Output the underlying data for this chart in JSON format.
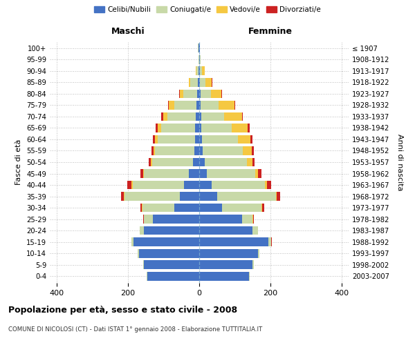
{
  "age_groups": [
    "0-4",
    "5-9",
    "10-14",
    "15-19",
    "20-24",
    "25-29",
    "30-34",
    "35-39",
    "40-44",
    "45-49",
    "50-54",
    "55-59",
    "60-64",
    "65-69",
    "70-74",
    "75-79",
    "80-84",
    "85-89",
    "90-94",
    "95-99",
    "100+"
  ],
  "birth_years": [
    "2003-2007",
    "1998-2002",
    "1993-1997",
    "1988-1992",
    "1983-1987",
    "1978-1982",
    "1973-1977",
    "1968-1972",
    "1963-1967",
    "1958-1962",
    "1953-1957",
    "1948-1952",
    "1943-1947",
    "1938-1942",
    "1933-1937",
    "1928-1932",
    "1923-1927",
    "1918-1922",
    "1913-1917",
    "1908-1912",
    "≤ 1907"
  ],
  "male": {
    "celibi": [
      145,
      155,
      170,
      185,
      155,
      130,
      70,
      55,
      42,
      30,
      18,
      14,
      12,
      12,
      10,
      8,
      5,
      3,
      2,
      0,
      2
    ],
    "coniugati": [
      2,
      3,
      4,
      5,
      12,
      25,
      90,
      155,
      145,
      125,
      115,
      110,
      105,
      95,
      80,
      62,
      40,
      22,
      5,
      2,
      1
    ],
    "vedovi": [
      0,
      0,
      0,
      0,
      0,
      0,
      1,
      2,
      3,
      2,
      3,
      5,
      8,
      10,
      12,
      15,
      10,
      5,
      2,
      0,
      0
    ],
    "divorziati": [
      0,
      0,
      0,
      0,
      1,
      3,
      5,
      8,
      12,
      8,
      5,
      6,
      6,
      5,
      5,
      2,
      1,
      0,
      0,
      0,
      0
    ]
  },
  "female": {
    "nubili": [
      140,
      150,
      165,
      195,
      150,
      120,
      65,
      50,
      35,
      22,
      15,
      10,
      8,
      6,
      5,
      4,
      3,
      2,
      2,
      1,
      1
    ],
    "coniugate": [
      2,
      3,
      5,
      8,
      15,
      30,
      110,
      165,
      150,
      135,
      120,
      112,
      100,
      85,
      65,
      50,
      30,
      15,
      5,
      2,
      1
    ],
    "vedove": [
      0,
      0,
      0,
      0,
      0,
      1,
      2,
      3,
      5,
      8,
      15,
      25,
      35,
      45,
      50,
      45,
      30,
      18,
      8,
      1,
      0
    ],
    "divorziate": [
      0,
      0,
      0,
      1,
      1,
      3,
      6,
      10,
      12,
      10,
      6,
      7,
      6,
      5,
      3,
      2,
      1,
      1,
      0,
      0,
      0
    ]
  },
  "colors": {
    "celibi": "#4472c4",
    "coniugati": "#c8d9a8",
    "vedovi": "#f5c842",
    "divorziati": "#cc2222"
  },
  "xlim": 420,
  "title": "Popolazione per età, sesso e stato civile - 2008",
  "subtitle": "COMUNE DI NICOLOSI (CT) - Dati ISTAT 1° gennaio 2008 - Elaborazione TUTTITALIA.IT",
  "maschi_label": "Maschi",
  "femmine_label": "Femmine",
  "ylabel_left": "Fasce di età",
  "ylabel_right": "Anni di nascita",
  "legend_labels": [
    "Celibi/Nubili",
    "Coniugati/e",
    "Vedovi/e",
    "Divorziati/e"
  ],
  "legend_colors": [
    "#4472c4",
    "#c8d9a8",
    "#f5c842",
    "#cc2222"
  ]
}
